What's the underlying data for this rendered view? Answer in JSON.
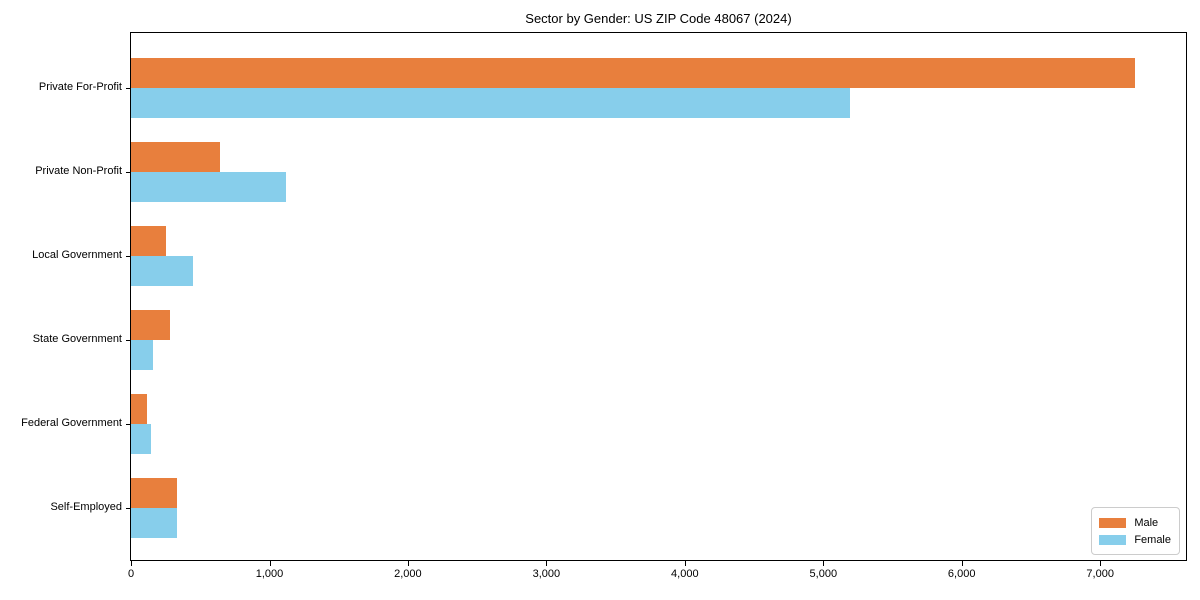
{
  "chart_data": {
    "type": "bar",
    "orientation": "horizontal",
    "title": "Sector by Gender: US ZIP Code 48067 (2024)",
    "categories": [
      "Private For-Profit",
      "Private Non-Profit",
      "Local Government",
      "State Government",
      "Federal Government",
      "Self-Employed"
    ],
    "series": [
      {
        "name": "Male",
        "color": "#e87f3d",
        "values": [
          7250,
          645,
          255,
          280,
          115,
          335
        ]
      },
      {
        "name": "Female",
        "color": "#87ceeb",
        "values": [
          5190,
          1120,
          450,
          155,
          145,
          330
        ]
      }
    ],
    "xlabel": "",
    "ylabel": "",
    "xlim": [
      0,
      7620
    ],
    "xticks": [
      0,
      1000,
      2000,
      3000,
      4000,
      5000,
      6000,
      7000
    ],
    "xtick_labels": [
      "0",
      "1,000",
      "2,000",
      "3,000",
      "4,000",
      "5,000",
      "6,000",
      "7,000"
    ],
    "grid": false,
    "legend_position": "lower right",
    "axis_color": "#000000",
    "background_color": "#ffffff"
  }
}
